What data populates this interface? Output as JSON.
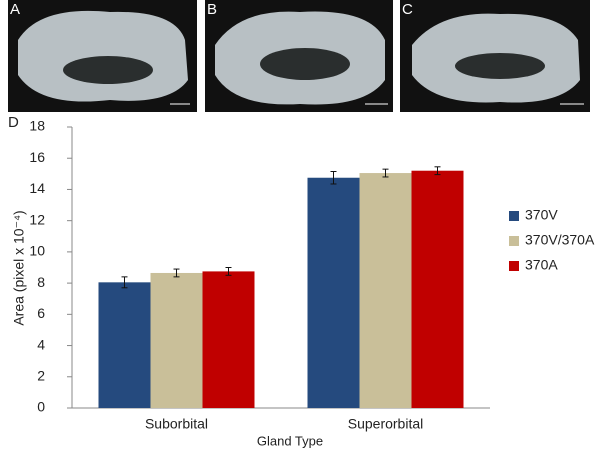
{
  "photo_panels": [
    {
      "label": "A"
    },
    {
      "label": "B"
    },
    {
      "label": "C"
    }
  ],
  "chart_data": {
    "type": "bar",
    "panel_label": "D",
    "y_label": "Area (pixel x 10⁻⁴)",
    "x_label": "Gland Type",
    "categories": [
      "Suborbital",
      "Superorbital"
    ],
    "series": [
      {
        "name": "370V",
        "color": "#254a7e",
        "values": [
          8.05,
          14.75
        ],
        "errors": [
          0.35,
          0.4
        ]
      },
      {
        "name": "370V/370A",
        "color": "#c9bf99",
        "values": [
          8.65,
          15.05
        ],
        "errors": [
          0.25,
          0.25
        ]
      },
      {
        "name": "370A",
        "color": "#c00000",
        "values": [
          8.75,
          15.2
        ],
        "errors": [
          0.25,
          0.25
        ]
      }
    ],
    "ylim": [
      0,
      18
    ],
    "yticks": [
      0,
      2,
      4,
      6,
      8,
      10,
      12,
      14,
      16,
      18
    ],
    "grid": false,
    "legend": "right"
  }
}
